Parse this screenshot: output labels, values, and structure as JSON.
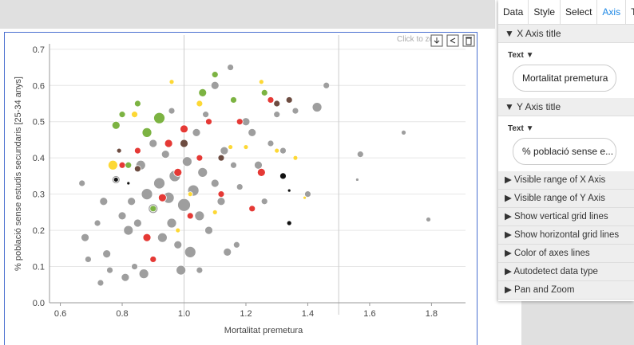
{
  "chart_data": {
    "type": "scatter",
    "x_label": "Mortalitat premetura",
    "y_label": "% població sense estudis secundaris [25-34 anys]",
    "xlim": [
      0.565,
      1.91
    ],
    "ylim": [
      0,
      0.715
    ],
    "xticks": [
      0.6,
      0.8,
      {
        "value": 1,
        "label": "1.0"
      },
      1.2,
      1.4,
      1.6,
      1.8
    ],
    "yticks": [
      {
        "value": 0,
        "label": "0.0"
      },
      0.1,
      0.2,
      0.3,
      0.4,
      0.5,
      0.6,
      0.7
    ],
    "reference_lines_x": [
      1.0,
      1.5
    ],
    "grid": true,
    "series": [
      {
        "color": "#9e9e9e",
        "x": [
          0.67,
          0.68,
          0.69,
          0.72,
          0.73,
          0.74,
          0.75,
          0.76,
          0.78,
          0.8,
          0.81,
          0.82,
          0.83,
          0.84,
          0.85,
          0.86,
          0.87,
          0.88,
          0.9,
          0.9,
          0.92,
          0.93,
          0.94,
          0.95,
          0.96,
          0.97,
          0.98,
          0.99,
          1.0,
          1.01,
          1.02,
          1.03,
          1.04,
          1.05,
          1.06,
          1.07,
          1.08,
          1.1,
          1.1,
          1.12,
          1.13,
          1.14,
          1.15,
          1.16,
          1.18,
          1.2,
          1.22,
          1.24,
          1.26,
          1.28,
          1.3,
          1.32,
          1.36,
          1.4,
          1.43,
          1.46,
          1.57,
          1.71,
          1.79,
          1.56,
          1.17,
          1.05,
          0.96
        ],
        "values": [
          0.33,
          0.18,
          0.12,
          0.22,
          0.055,
          0.28,
          0.135,
          0.09,
          0.34,
          0.24,
          0.07,
          0.2,
          0.28,
          0.1,
          0.22,
          0.38,
          0.08,
          0.3,
          0.26,
          0.44,
          0.33,
          0.18,
          0.41,
          0.29,
          0.22,
          0.35,
          0.16,
          0.09,
          0.27,
          0.39,
          0.14,
          0.31,
          0.47,
          0.24,
          0.36,
          0.52,
          0.2,
          0.33,
          0.6,
          0.28,
          0.42,
          0.14,
          0.65,
          0.38,
          0.32,
          0.5,
          0.47,
          0.38,
          0.28,
          0.44,
          0.52,
          0.42,
          0.53,
          0.3,
          0.54,
          0.6,
          0.41,
          0.47,
          0.23,
          0.34,
          0.16,
          0.09,
          0.53
        ],
        "sizes": [
          4,
          5,
          4,
          4,
          4,
          5,
          5,
          4,
          5,
          5,
          5,
          6,
          5,
          4,
          5,
          6,
          6,
          7,
          6,
          5,
          7,
          6,
          5,
          7,
          6,
          7,
          5,
          6,
          8,
          6,
          7,
          7,
          5,
          6,
          6,
          4,
          5,
          5,
          5,
          5,
          5,
          5,
          4,
          4,
          4,
          5,
          5,
          5,
          4,
          4,
          4,
          4,
          4,
          4,
          6,
          4,
          4,
          3,
          3,
          2,
          4,
          4,
          4
        ]
      },
      {
        "color": "#e53935",
        "x": [
          0.8,
          0.85,
          0.88,
          0.93,
          0.95,
          0.98,
          1.02,
          1.05,
          1.08,
          1.12,
          1.18,
          1.25,
          1.28,
          1.22,
          0.9,
          1.0
        ],
        "values": [
          0.38,
          0.42,
          0.18,
          0.29,
          0.44,
          0.36,
          0.24,
          0.4,
          0.5,
          0.3,
          0.5,
          0.36,
          0.56,
          0.26,
          0.12,
          0.48
        ],
        "sizes": [
          4,
          4,
          5,
          5,
          5,
          5,
          4,
          4,
          4,
          4,
          4,
          5,
          4,
          4,
          4,
          5
        ]
      },
      {
        "color": "#7cb342",
        "x": [
          0.78,
          0.8,
          0.82,
          0.85,
          0.88,
          0.92,
          1.06,
          1.1,
          1.16,
          0.9,
          1.26
        ],
        "values": [
          0.49,
          0.52,
          0.38,
          0.55,
          0.47,
          0.51,
          0.58,
          0.63,
          0.56,
          0.26,
          0.58
        ],
        "sizes": [
          5,
          4,
          4,
          4,
          6,
          7,
          5,
          4,
          4,
          4,
          4
        ]
      },
      {
        "color": "#fdd835",
        "x": [
          0.77,
          0.84,
          0.96,
          1.05,
          1.2,
          1.25,
          1.3,
          1.36,
          1.02,
          1.1,
          1.15,
          1.39,
          0.98
        ],
        "values": [
          0.38,
          0.52,
          0.61,
          0.55,
          0.43,
          0.61,
          0.42,
          0.4,
          0.3,
          0.25,
          0.43,
          0.29,
          0.2
        ],
        "sizes": [
          6,
          4,
          3,
          4,
          3,
          3,
          3,
          3,
          3,
          3,
          3,
          2,
          3
        ]
      },
      {
        "color": "#6d4c41",
        "x": [
          0.85,
          1.0,
          1.12,
          1.3,
          1.34,
          0.79
        ],
        "values": [
          0.37,
          0.44,
          0.4,
          0.55,
          0.56,
          0.42
        ],
        "sizes": [
          4,
          5,
          4,
          4,
          4,
          3
        ]
      },
      {
        "color": "#111111",
        "x": [
          0.78,
          1.32,
          1.34,
          1.34,
          0.82
        ],
        "values": [
          0.34,
          0.35,
          0.31,
          0.22,
          0.33
        ],
        "sizes": [
          3,
          4,
          2,
          3,
          2
        ]
      }
    ]
  },
  "toolbar": {
    "hint": "Click to zo"
  },
  "panel": {
    "tabs": [
      "Data",
      "Style",
      "Select",
      "Axis",
      "Too"
    ],
    "active_tab": 3,
    "x_title": {
      "header": "X Axis title",
      "field": "Text",
      "value": "Mortalitat premetura"
    },
    "y_title": {
      "header": "Y Axis title",
      "field": "Text",
      "value": "% població sense e..."
    },
    "rows": [
      "Visible range of X Axis",
      "Visible range of Y Axis",
      "Show vertical grid lines",
      "Show horizontal grid lines",
      "Color of axes lines",
      "Autodetect data type",
      "Pan and Zoom"
    ]
  }
}
